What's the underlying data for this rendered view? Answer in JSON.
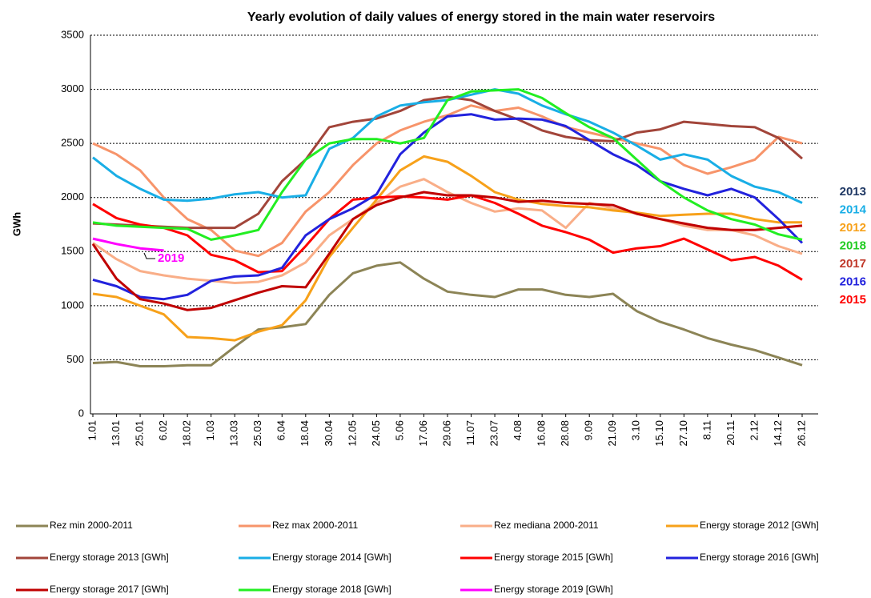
{
  "chart_data": {
    "type": "line",
    "title": "Yearly evolution of daily values of energy stored in the main water reservoirs",
    "y_label": "GWh",
    "categories": [
      "1.01",
      "13.01",
      "25.01",
      "6.02",
      "18.02",
      "1.03",
      "13.03",
      "25.03",
      "6.04",
      "18.04",
      "30.04",
      "12.05",
      "24.05",
      "5.06",
      "17.06",
      "29.06",
      "11.07",
      "23.07",
      "4.08",
      "16.08",
      "28.08",
      "9.09",
      "21.09",
      "3.10",
      "15.10",
      "27.10",
      "8.11",
      "20.11",
      "2.12",
      "14.12",
      "26.12"
    ],
    "ylim": [
      0,
      3500
    ],
    "yticks": [
      0,
      500,
      1000,
      1500,
      2000,
      2500,
      3000,
      3500
    ],
    "grid": true,
    "series": [
      {
        "name": "Rez min 2000-2011",
        "color": "#8c8456",
        "values": [
          470,
          480,
          440,
          440,
          450,
          450,
          620,
          780,
          800,
          830,
          1100,
          1300,
          1370,
          1400,
          1250,
          1130,
          1100,
          1080,
          1150,
          1150,
          1100,
          1080,
          1110,
          950,
          850,
          780,
          700,
          640,
          590,
          520,
          450
        ]
      },
      {
        "name": "Rez max 2000-2011",
        "color": "#f7946a",
        "values": [
          2500,
          2400,
          2250,
          2000,
          1800,
          1700,
          1510,
          1460,
          1580,
          1870,
          2050,
          2300,
          2500,
          2620,
          2700,
          2760,
          2850,
          2800,
          2830,
          2750,
          2650,
          2600,
          2550,
          2500,
          2450,
          2300,
          2220,
          2280,
          2350,
          2560,
          2500
        ]
      },
      {
        "name": "Rez mediana 2000-2011",
        "color": "#f9ae88",
        "values": [
          1580,
          1430,
          1320,
          1280,
          1250,
          1230,
          1210,
          1220,
          1280,
          1400,
          1650,
          1800,
          1950,
          2100,
          2170,
          2050,
          1950,
          1870,
          1900,
          1880,
          1720,
          1950,
          1900,
          1850,
          1800,
          1740,
          1700,
          1700,
          1650,
          1550,
          1480
        ]
      },
      {
        "name": "Energy storage 2012 [GWh]",
        "color": "#f7a11a",
        "values": [
          1110,
          1080,
          1000,
          920,
          710,
          700,
          680,
          760,
          820,
          1050,
          1450,
          1720,
          1980,
          2250,
          2380,
          2330,
          2200,
          2050,
          1980,
          1940,
          1920,
          1910,
          1880,
          1860,
          1830,
          1840,
          1850,
          1850,
          1800,
          1770,
          1770
        ]
      },
      {
        "name": "Energy storage 2013 [GWh]",
        "color": "#a2453a",
        "values": [
          1760,
          1750,
          1740,
          1730,
          1720,
          1720,
          1720,
          1850,
          2150,
          2350,
          2650,
          2700,
          2730,
          2800,
          2900,
          2930,
          2900,
          2800,
          2720,
          2620,
          2560,
          2530,
          2520,
          2600,
          2630,
          2700,
          2680,
          2660,
          2650,
          2550,
          2360
        ]
      },
      {
        "name": "Energy storage 2014 [GWh]",
        "color": "#19aee6",
        "values": [
          2370,
          2200,
          2080,
          1980,
          1970,
          1990,
          2030,
          2050,
          2000,
          2020,
          2450,
          2550,
          2750,
          2850,
          2880,
          2900,
          2950,
          3000,
          2960,
          2850,
          2770,
          2700,
          2600,
          2480,
          2350,
          2400,
          2350,
          2200,
          2100,
          2050,
          1950
        ]
      },
      {
        "name": "Energy storage 2015 [GWh]",
        "color": "#ff0000",
        "values": [
          1940,
          1810,
          1750,
          1720,
          1650,
          1470,
          1420,
          1310,
          1320,
          1550,
          1800,
          1980,
          2000,
          2010,
          2000,
          1980,
          2020,
          1950,
          1850,
          1740,
          1680,
          1610,
          1490,
          1530,
          1550,
          1620,
          1520,
          1420,
          1450,
          1370,
          1240
        ]
      },
      {
        "name": "Energy storage 2016 [GWh]",
        "color": "#2222dd",
        "values": [
          1240,
          1180,
          1080,
          1060,
          1100,
          1230,
          1270,
          1280,
          1350,
          1650,
          1800,
          1900,
          2030,
          2400,
          2600,
          2750,
          2770,
          2720,
          2730,
          2720,
          2660,
          2530,
          2400,
          2300,
          2150,
          2080,
          2020,
          2080,
          2000,
          1800,
          1580
        ]
      },
      {
        "name": "Energy storage 2017 [GWh]",
        "color": "#c00000",
        "values": [
          1570,
          1250,
          1060,
          1020,
          960,
          980,
          1050,
          1120,
          1180,
          1170,
          1480,
          1800,
          1930,
          2000,
          2050,
          2020,
          2020,
          2000,
          1960,
          1970,
          1950,
          1940,
          1930,
          1850,
          1800,
          1760,
          1720,
          1700,
          1700,
          1720,
          1740
        ]
      },
      {
        "name": "Energy storage 2018 [GWh]",
        "color": "#22ee22",
        "values": [
          1770,
          1740,
          1730,
          1720,
          1710,
          1610,
          1650,
          1700,
          2050,
          2350,
          2500,
          2540,
          2540,
          2500,
          2550,
          2900,
          2980,
          2990,
          3000,
          2920,
          2780,
          2650,
          2550,
          2350,
          2150,
          2000,
          1880,
          1800,
          1750,
          1660,
          1610
        ]
      },
      {
        "name": "Energy storage 2019 [GWh]",
        "color": "#ff00ff",
        "values": [
          1620,
          1570,
          1530,
          1510,
          null,
          null,
          null,
          null,
          null,
          null,
          null,
          null,
          null,
          null,
          null,
          null,
          null,
          null,
          null,
          null,
          null,
          null,
          null,
          null,
          null,
          null,
          null,
          null,
          null,
          null,
          null
        ]
      }
    ],
    "annotations": [
      {
        "text": "2013",
        "color": "#1f3864"
      },
      {
        "text": "2014",
        "color": "#19aee6"
      },
      {
        "text": "2012",
        "color": "#f7a11a"
      },
      {
        "text": "2018",
        "color": "#22cc22"
      },
      {
        "text": "2017",
        "color": "#c0392b"
      },
      {
        "text": "2016",
        "color": "#2222dd"
      },
      {
        "text": "2015",
        "color": "#ff0000"
      }
    ],
    "inline_label": {
      "text": "2019",
      "color": "#ff00ff"
    }
  }
}
